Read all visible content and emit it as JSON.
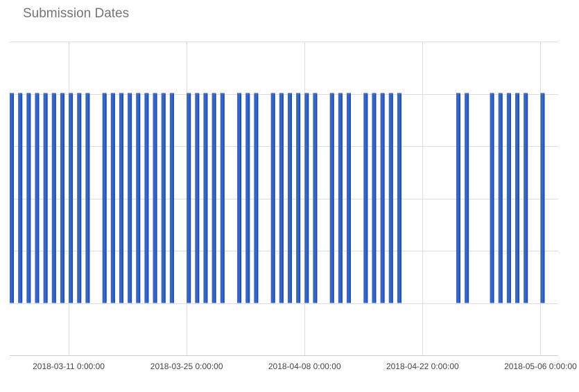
{
  "chart_data": {
    "type": "bar",
    "title": "Submission Dates",
    "xlabel": "",
    "ylabel": "",
    "x_axis": {
      "tick_labels": [
        "2018-03-11 0:00:00",
        "2018-03-25 0:00:00",
        "2018-04-08 0:00:00",
        "2018-04-22 0:00:00",
        "2018-05-06 0:00:00"
      ],
      "range": [
        "2018-03-04",
        "2018-05-08"
      ]
    },
    "y_axis": {
      "tick_labels_visible": false,
      "range": [
        0,
        1.2
      ],
      "gridlines": 6
    },
    "grid": true,
    "legend": "none",
    "bar_color": "#3366cc",
    "series": [
      {
        "dates": [
          "2018-03-04",
          "2018-03-05",
          "2018-03-06",
          "2018-03-07",
          "2018-03-08",
          "2018-03-09",
          "2018-03-10",
          "2018-03-11",
          "2018-03-12",
          "2018-03-13",
          "2018-03-15",
          "2018-03-16",
          "2018-03-17",
          "2018-03-18",
          "2018-03-19",
          "2018-03-20",
          "2018-03-21",
          "2018-03-22",
          "2018-03-23",
          "2018-03-25",
          "2018-03-26",
          "2018-03-27",
          "2018-03-28",
          "2018-03-29",
          "2018-03-31",
          "2018-04-01",
          "2018-04-02",
          "2018-04-04",
          "2018-04-05",
          "2018-04-06",
          "2018-04-07",
          "2018-04-08",
          "2018-04-09",
          "2018-04-11",
          "2018-04-12",
          "2018-04-13",
          "2018-04-15",
          "2018-04-16",
          "2018-04-17",
          "2018-04-18",
          "2018-04-19",
          "2018-04-26",
          "2018-04-27",
          "2018-04-30",
          "2018-05-01",
          "2018-05-02",
          "2018-05-03",
          "2018-05-04",
          "2018-05-06"
        ],
        "values": [
          1,
          1,
          1,
          1,
          1,
          1,
          1,
          1,
          1,
          1,
          1,
          1,
          1,
          1,
          1,
          1,
          1,
          1,
          1,
          1,
          1,
          1,
          1,
          1,
          1,
          1,
          1,
          1,
          1,
          1,
          1,
          1,
          1,
          1,
          1,
          1,
          1,
          1,
          1,
          1,
          1,
          1,
          1,
          1,
          1,
          1,
          1,
          1,
          1
        ]
      }
    ]
  }
}
